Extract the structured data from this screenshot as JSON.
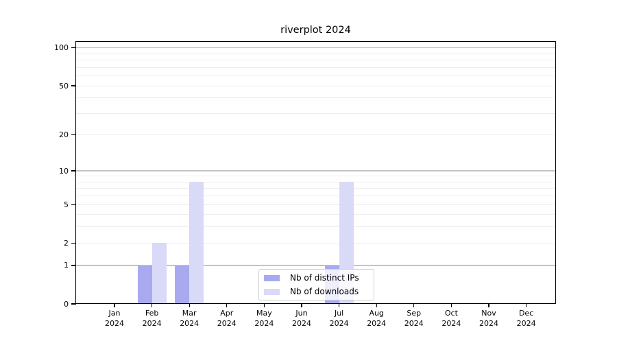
{
  "title": "riverplot 2024",
  "chart_data": {
    "type": "bar",
    "title": "riverplot 2024",
    "xlabel": "",
    "ylabel": "",
    "categories": [
      "Jan",
      "Feb",
      "Mar",
      "Apr",
      "May",
      "Jun",
      "Jul",
      "Aug",
      "Sep",
      "Oct",
      "Nov",
      "Dec"
    ],
    "x_tick_year": "2024",
    "series": [
      {
        "name": "Nb of distinct IPs",
        "color": "#a9a9f0",
        "values": [
          0,
          1,
          1,
          0,
          0,
          0,
          1,
          0,
          0,
          0,
          0,
          0
        ]
      },
      {
        "name": "Nb of downloads",
        "color": "#d9d9f8",
        "values": [
          0,
          2,
          8,
          0,
          0,
          0,
          8,
          0,
          0,
          0,
          0,
          0
        ]
      }
    ],
    "y_axis": {
      "scale": "log10(value+1)",
      "tick_labels": [
        0,
        1,
        2,
        5,
        10,
        20,
        50,
        100
      ],
      "major_gridlines": [
        1,
        10,
        100
      ],
      "minor_gridlines": [
        2,
        3,
        4,
        5,
        6,
        7,
        8,
        9,
        20,
        30,
        40,
        50,
        60,
        70,
        80,
        90
      ],
      "range": [
        0,
        113
      ],
      "grid": true
    },
    "legend": {
      "position": "bottom-center",
      "entries": [
        "Nb of distinct IPs",
        "Nb of downloads"
      ]
    }
  },
  "colors": {
    "axis": "#000000",
    "major_grid": "#c3c3c3",
    "minor_grid": "#ededed",
    "background": "#ffffff",
    "legend_border": "#cccccc"
  }
}
